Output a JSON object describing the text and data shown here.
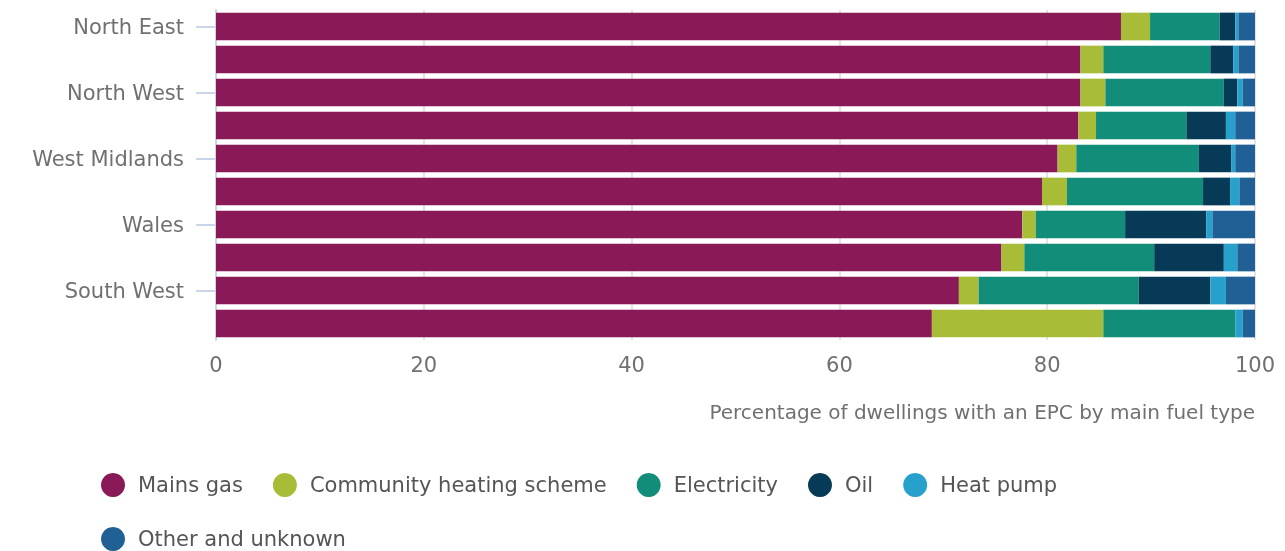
{
  "chart_data": {
    "type": "bar",
    "orientation": "horizontal",
    "stacked": true,
    "xlabel": "Percentage of dwellings with an EPC by main fuel type",
    "categories": [
      "North East",
      null,
      "North West",
      null,
      "West Midlands",
      null,
      "Wales",
      null,
      "South West",
      null
    ],
    "series": [
      {
        "name": "Mains gas",
        "color": "#8a1a57",
        "values": [
          87.1,
          83.2,
          83.2,
          83.0,
          81.0,
          79.5,
          77.6,
          75.6,
          71.5,
          68.9
        ]
      },
      {
        "name": "Community heating scheme",
        "color": "#a9bc38",
        "values": [
          2.8,
          2.2,
          2.4,
          1.7,
          1.8,
          2.4,
          1.3,
          2.2,
          1.9,
          16.5
        ]
      },
      {
        "name": "Electricity",
        "color": "#128d7a",
        "values": [
          6.7,
          10.3,
          11.4,
          8.7,
          11.8,
          13.1,
          8.6,
          12.5,
          15.4,
          12.7
        ]
      },
      {
        "name": "Oil",
        "color": "#063a56",
        "values": [
          1.5,
          2.2,
          1.3,
          3.8,
          3.1,
          2.6,
          7.8,
          6.7,
          6.9,
          0
        ]
      },
      {
        "name": "Heat pump",
        "color": "#27a0cc",
        "values": [
          0.3,
          0.5,
          0.5,
          0.9,
          0.4,
          0.9,
          0.6,
          1.3,
          1.5,
          0.7
        ]
      },
      {
        "name": "Other and unknown",
        "color": "#206095",
        "values": [
          1.6,
          1.6,
          1.2,
          1.9,
          1.9,
          1.5,
          4.1,
          1.7,
          2.8,
          1.2
        ]
      }
    ],
    "xlim": [
      0,
      100
    ],
    "xticks": [
      0,
      20,
      40,
      60,
      80,
      100
    ],
    "grid": "x",
    "legend": "bottom left"
  }
}
